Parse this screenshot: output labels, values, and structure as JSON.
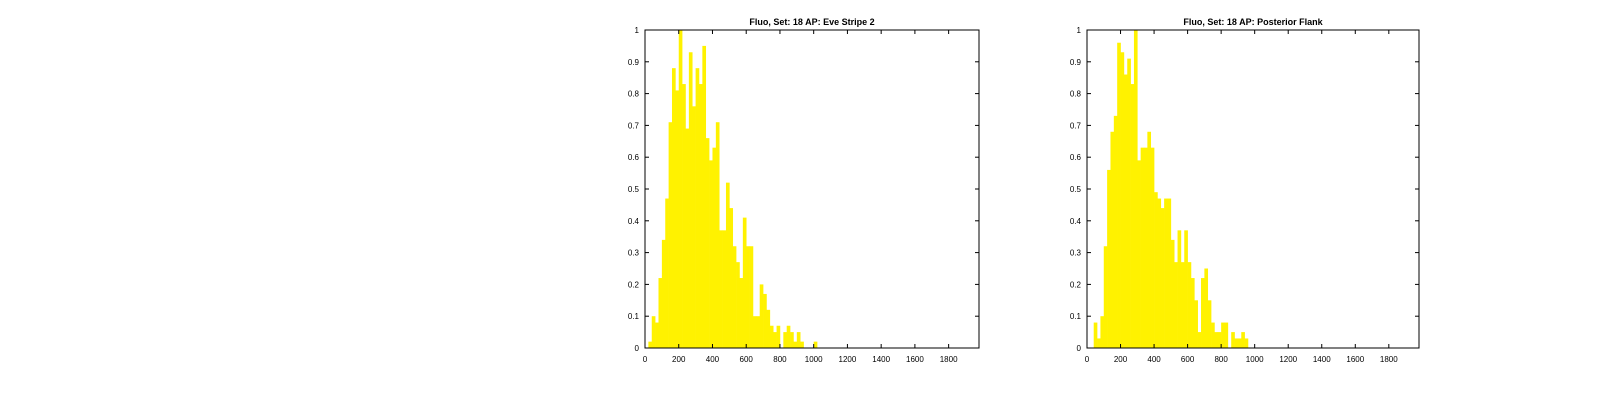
{
  "chart_data": [
    {
      "type": "bar",
      "title": "Fluo, Set: 18 AP: Eve Stripe 2",
      "xlabel": "",
      "ylabel": "",
      "xlim": [
        0,
        1980
      ],
      "ylim": [
        0,
        1
      ],
      "bin_width": 20,
      "x_ticks": [
        0,
        200,
        400,
        600,
        800,
        1000,
        1200,
        1400,
        1600,
        1800
      ],
      "y_ticks": [
        0,
        0.1,
        0.2,
        0.3,
        0.4,
        0.5,
        0.6,
        0.7,
        0.8,
        0.9,
        1
      ],
      "grid": false,
      "legend": "none",
      "color": "#fff200",
      "x": [
        20,
        40,
        60,
        80,
        100,
        120,
        140,
        160,
        180,
        200,
        220,
        240,
        260,
        280,
        300,
        320,
        340,
        360,
        380,
        400,
        420,
        440,
        460,
        480,
        500,
        520,
        540,
        560,
        580,
        600,
        620,
        640,
        660,
        680,
        700,
        720,
        740,
        760,
        780,
        800,
        820,
        840,
        860,
        880,
        900,
        920,
        940,
        960,
        980,
        1000,
        1020,
        1040
      ],
      "values": [
        0.02,
        0.1,
        0.08,
        0.22,
        0.34,
        0.47,
        0.71,
        0.88,
        0.81,
        1.0,
        0.83,
        0.69,
        0.93,
        0.76,
        0.88,
        0.83,
        0.95,
        0.66,
        0.59,
        0.63,
        0.71,
        0.37,
        0.37,
        0.52,
        0.44,
        0.32,
        0.27,
        0.22,
        0.41,
        0.32,
        0.32,
        0.1,
        0.1,
        0.2,
        0.17,
        0.12,
        0.07,
        0.05,
        0.07,
        0.0,
        0.05,
        0.07,
        0.05,
        0.02,
        0.05,
        0.02,
        0.0,
        0.0,
        0.0,
        0.02,
        0.0,
        0.0
      ]
    },
    {
      "type": "bar",
      "title": "Fluo, Set: 18 AP: Posterior Flank",
      "xlabel": "",
      "ylabel": "",
      "xlim": [
        0,
        1980
      ],
      "ylim": [
        0,
        1
      ],
      "bin_width": 20,
      "x_ticks": [
        0,
        200,
        400,
        600,
        800,
        1000,
        1200,
        1400,
        1600,
        1800
      ],
      "y_ticks": [
        0,
        0.1,
        0.2,
        0.3,
        0.4,
        0.5,
        0.6,
        0.7,
        0.8,
        0.9,
        1
      ],
      "grid": false,
      "legend": "none",
      "color": "#fff200",
      "x": [
        20,
        40,
        60,
        80,
        100,
        120,
        140,
        160,
        180,
        200,
        220,
        240,
        260,
        280,
        300,
        320,
        340,
        360,
        380,
        400,
        420,
        440,
        460,
        480,
        500,
        520,
        540,
        560,
        580,
        600,
        620,
        640,
        660,
        680,
        700,
        720,
        740,
        760,
        780,
        800,
        820,
        840,
        860,
        880,
        900,
        920,
        940,
        960
      ],
      "values": [
        0.0,
        0.08,
        0.03,
        0.1,
        0.32,
        0.56,
        0.68,
        0.73,
        0.96,
        0.93,
        0.86,
        0.91,
        0.83,
        1.0,
        0.59,
        0.63,
        0.63,
        0.68,
        0.63,
        0.49,
        0.47,
        0.44,
        0.47,
        0.47,
        0.34,
        0.27,
        0.37,
        0.27,
        0.37,
        0.27,
        0.22,
        0.15,
        0.05,
        0.22,
        0.25,
        0.15,
        0.08,
        0.05,
        0.05,
        0.08,
        0.08,
        0.0,
        0.05,
        0.03,
        0.03,
        0.05,
        0.03,
        0.0
      ]
    }
  ]
}
